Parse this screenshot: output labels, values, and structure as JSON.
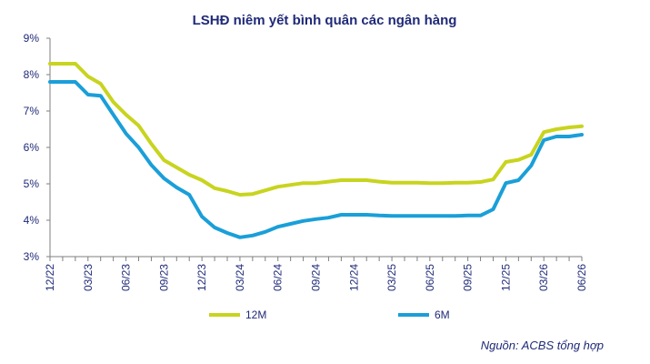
{
  "chart_data": {
    "type": "line",
    "title": "LSHĐ niêm yết bình quân các ngân hàng",
    "source": "Nguồn: ACBS tổng hợp",
    "xlabel": "",
    "ylabel": "",
    "ylim": [
      3,
      9
    ],
    "y_ticks": [
      3,
      4,
      5,
      6,
      7,
      8,
      9
    ],
    "y_tick_labels": [
      "3%",
      "4%",
      "5%",
      "6%",
      "7%",
      "8%",
      "9%"
    ],
    "grid": false,
    "legend_position": "bottom",
    "x": [
      "12/22",
      "01/23",
      "02/23",
      "03/23",
      "04/23",
      "05/23",
      "06/23",
      "07/23",
      "08/23",
      "09/23",
      "10/23",
      "11/23",
      "12/23",
      "01/24",
      "02/24",
      "03/24",
      "04/24",
      "05/24",
      "06/24",
      "07/24",
      "08/24",
      "09/24",
      "10/24",
      "11/24",
      "12/24",
      "01/25",
      "02/25",
      "03/25",
      "04/25",
      "05/25",
      "06/25",
      "07/25",
      "08/25",
      "09/25",
      "10/25",
      "11/25",
      "12/25",
      "01/26",
      "02/26",
      "03/26",
      "04/26",
      "05/26",
      "06/26"
    ],
    "x_tick_labels": [
      "12/22",
      "03/23",
      "06/23",
      "09/23",
      "12/23",
      "03/24",
      "06/24",
      "09/24",
      "12/24",
      "03/25",
      "06/25",
      "09/25",
      "12/25",
      "03/26",
      "06/26"
    ],
    "series": [
      {
        "name": "12M",
        "color": "#c8d41e",
        "values": [
          8.3,
          8.3,
          8.3,
          7.95,
          7.75,
          7.25,
          6.9,
          6.6,
          6.1,
          5.65,
          5.45,
          5.25,
          5.1,
          4.88,
          4.8,
          4.7,
          4.72,
          4.82,
          4.92,
          4.97,
          5.02,
          5.02,
          5.06,
          5.1,
          5.1,
          5.1,
          5.06,
          5.03,
          5.03,
          5.03,
          5.02,
          5.02,
          5.03,
          5.03,
          5.05,
          5.12,
          5.6,
          5.66,
          5.8,
          6.42,
          6.5,
          6.55,
          6.58
        ]
      },
      {
        "name": "6M",
        "color": "#1a9fd8",
        "values": [
          7.8,
          7.8,
          7.8,
          7.45,
          7.42,
          6.9,
          6.38,
          6.0,
          5.52,
          5.15,
          4.9,
          4.7,
          4.1,
          3.8,
          3.65,
          3.53,
          3.58,
          3.68,
          3.82,
          3.9,
          3.98,
          4.03,
          4.07,
          4.15,
          4.15,
          4.15,
          4.13,
          4.12,
          4.12,
          4.12,
          4.12,
          4.12,
          4.12,
          4.13,
          4.13,
          4.3,
          5.02,
          5.1,
          5.5,
          6.2,
          6.3,
          6.3,
          6.35
        ]
      }
    ]
  }
}
